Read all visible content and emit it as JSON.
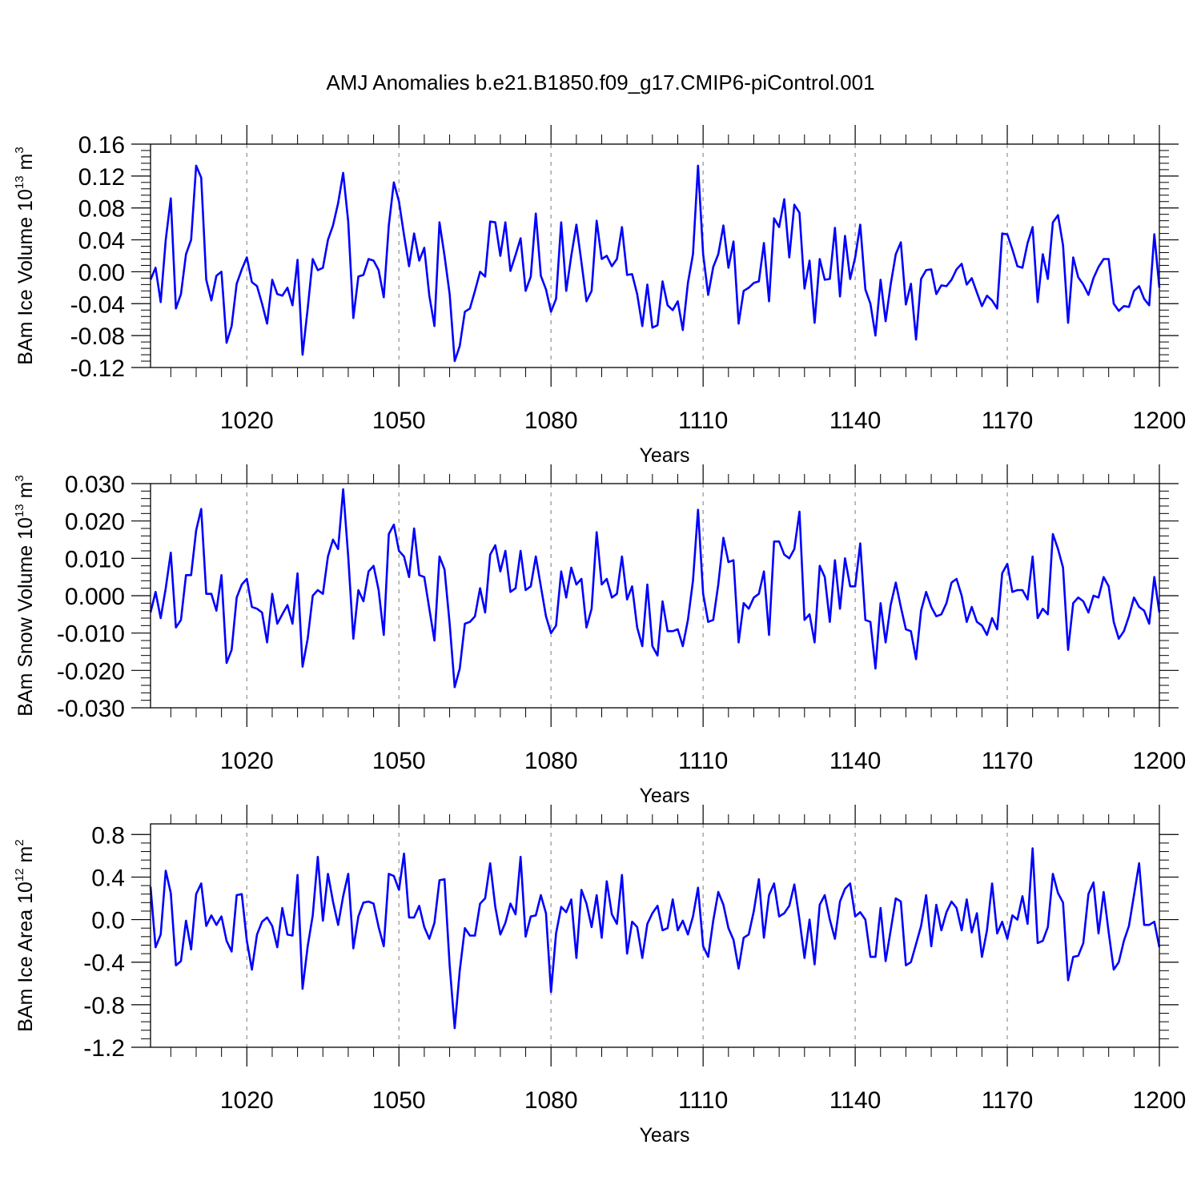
{
  "title": "AMJ Anomalies b.e21.B1850.f09_g17.CMIP6-piControl.001",
  "chart_data": [
    {
      "type": "line",
      "title": "AMJ Anomalies b.e21.B1850.f09_g17.CMIP6-piControl.001",
      "xlabel": "Years",
      "ylabel_prefix": "BAm Ice Volume 10",
      "ylabel_exp": "13",
      "ylabel_suffix": " m",
      "ylabel_unit_exp": "3",
      "xlim": [
        1001,
        1200
      ],
      "ylim": [
        -0.12,
        0.16
      ],
      "xticks": [
        1020,
        1050,
        1080,
        1110,
        1140,
        1170,
        1200
      ],
      "xtick_labels": [
        "1020",
        "1050",
        "1080",
        "1110",
        "1140",
        "1170",
        "1200"
      ],
      "yticks": [
        -0.12,
        -0.08,
        -0.04,
        0.0,
        0.04,
        0.08,
        0.12,
        0.16
      ],
      "ytick_labels": [
        "-0.12",
        "-0.08",
        "-0.04",
        "0.00",
        "0.04",
        "0.08",
        "0.12",
        "0.16"
      ],
      "grid": "vertical-dashed",
      "color": "#0000ff",
      "x_start": 1001,
      "values": [
        -0.01,
        0.005,
        -0.038,
        0.04,
        0.092,
        -0.046,
        -0.028,
        0.022,
        0.04,
        0.133,
        0.118,
        -0.01,
        -0.036,
        -0.005,
        0.0,
        -0.089,
        -0.068,
        -0.015,
        0.003,
        0.018,
        -0.013,
        -0.018,
        -0.04,
        -0.065,
        -0.01,
        -0.028,
        -0.03,
        -0.02,
        -0.042,
        0.015,
        -0.104,
        -0.046,
        0.016,
        0.002,
        0.005,
        0.04,
        0.058,
        0.086,
        0.124,
        0.063,
        -0.058,
        -0.006,
        -0.004,
        0.016,
        0.014,
        0.002,
        -0.032,
        0.058,
        0.112,
        0.088,
        0.046,
        0.007,
        0.048,
        0.014,
        0.03,
        -0.03,
        -0.068,
        0.062,
        0.02,
        -0.028,
        -0.112,
        -0.093,
        -0.05,
        -0.046,
        -0.024,
        0.0,
        -0.006,
        0.063,
        0.062,
        0.02,
        0.062,
        0.001,
        0.021,
        0.042,
        -0.024,
        -0.006,
        0.073,
        -0.005,
        -0.022,
        -0.05,
        -0.034,
        0.062,
        -0.024,
        0.02,
        0.059,
        0.012,
        -0.037,
        -0.024,
        0.064,
        0.016,
        0.02,
        0.007,
        0.016,
        0.056,
        -0.004,
        -0.003,
        -0.028,
        -0.068,
        -0.016,
        -0.07,
        -0.067,
        -0.012,
        -0.042,
        -0.048,
        -0.037,
        -0.073,
        -0.014,
        0.022,
        0.133,
        0.022,
        -0.029,
        0.006,
        0.022,
        0.058,
        0.005,
        0.038,
        -0.065,
        -0.024,
        -0.02,
        -0.014,
        -0.012,
        0.036,
        -0.037,
        0.067,
        0.056,
        0.091,
        0.018,
        0.084,
        0.074,
        -0.021,
        0.014,
        -0.064,
        0.016,
        -0.01,
        -0.009,
        0.055,
        -0.031,
        0.045,
        -0.009,
        0.018,
        0.059,
        -0.022,
        -0.04,
        -0.08,
        -0.01,
        -0.062,
        -0.016,
        0.022,
        0.037,
        -0.041,
        -0.015,
        -0.085,
        -0.009,
        0.002,
        0.003,
        -0.028,
        -0.017,
        -0.018,
        -0.01,
        0.003,
        0.01,
        -0.016,
        -0.008,
        -0.026,
        -0.043,
        -0.03,
        -0.036,
        -0.046,
        0.048,
        0.047,
        0.028,
        0.007,
        0.005,
        0.036,
        0.056,
        -0.038,
        0.022,
        -0.009,
        0.062,
        0.071,
        0.033,
        -0.064,
        0.018,
        -0.007,
        -0.016,
        -0.029,
        -0.008,
        0.006,
        0.016,
        0.016,
        -0.04,
        -0.049,
        -0.043,
        -0.044,
        -0.024,
        -0.018,
        -0.034,
        -0.042,
        0.047,
        -0.02
      ]
    },
    {
      "type": "line",
      "xlabel": "Years",
      "ylabel_prefix": "BAm Snow Volume 10",
      "ylabel_exp": "13",
      "ylabel_suffix": " m",
      "ylabel_unit_exp": "3",
      "xlim": [
        1001,
        1200
      ],
      "ylim": [
        -0.03,
        0.03
      ],
      "xticks": [
        1020,
        1050,
        1080,
        1110,
        1140,
        1170,
        1200
      ],
      "xtick_labels": [
        "1020",
        "1050",
        "1080",
        "1110",
        "1140",
        "1170",
        "1200"
      ],
      "yticks": [
        -0.03,
        -0.02,
        -0.01,
        0.0,
        0.01,
        0.02,
        0.03
      ],
      "ytick_labels": [
        "-0.030",
        "-0.020",
        "-0.010",
        "0.000",
        "0.010",
        "0.020",
        "0.030"
      ],
      "grid": "vertical-dashed",
      "color": "#0000ff",
      "x_start": 1001,
      "values": [
        -0.0045,
        0.001,
        -0.006,
        0.002,
        0.0115,
        -0.0085,
        -0.0065,
        0.0055,
        0.0055,
        0.0175,
        0.0232,
        0.0005,
        0.0005,
        -0.004,
        0.0055,
        -0.018,
        -0.0145,
        -0.0005,
        0.003,
        0.0045,
        -0.003,
        -0.0035,
        -0.0045,
        -0.0125,
        0.0005,
        -0.0075,
        -0.005,
        -0.0025,
        -0.0075,
        0.006,
        -0.019,
        -0.0115,
        0.0,
        0.0015,
        0.0005,
        0.0105,
        0.015,
        0.0125,
        0.0285,
        0.0105,
        -0.0115,
        0.0015,
        -0.0015,
        0.0065,
        0.008,
        0.0015,
        -0.0105,
        0.0165,
        0.019,
        0.012,
        0.0105,
        0.005,
        0.018,
        0.0055,
        0.005,
        -0.0035,
        -0.012,
        0.0105,
        0.007,
        -0.0075,
        -0.0245,
        -0.0195,
        -0.0075,
        -0.007,
        -0.0055,
        0.002,
        -0.0045,
        0.011,
        0.0135,
        0.0065,
        0.012,
        0.001,
        0.002,
        0.012,
        0.0015,
        0.0025,
        0.0105,
        0.0025,
        -0.0055,
        -0.01,
        -0.008,
        0.0065,
        -0.0005,
        0.0075,
        0.003,
        0.0045,
        -0.0085,
        -0.0035,
        0.017,
        0.003,
        0.0045,
        -0.0005,
        0.0005,
        0.0105,
        -0.001,
        0.0025,
        -0.0085,
        -0.0135,
        0.003,
        -0.0135,
        -0.016,
        -0.0015,
        -0.0095,
        -0.0095,
        -0.009,
        -0.0135,
        -0.0065,
        0.004,
        0.023,
        0.0005,
        -0.007,
        -0.0065,
        0.003,
        0.0155,
        0.009,
        0.0095,
        -0.0125,
        -0.002,
        -0.0035,
        -0.0005,
        0.0005,
        0.0065,
        -0.0105,
        0.0145,
        0.0145,
        0.011,
        0.01,
        0.0125,
        0.0225,
        -0.0065,
        -0.005,
        -0.0125,
        0.008,
        0.005,
        -0.007,
        0.0095,
        -0.0035,
        0.01,
        0.0025,
        0.0025,
        0.014,
        -0.0065,
        -0.007,
        -0.0195,
        -0.002,
        -0.0125,
        -0.0025,
        0.0035,
        -0.003,
        -0.009,
        -0.0095,
        -0.017,
        -0.004,
        0.001,
        -0.003,
        -0.0055,
        -0.005,
        -0.002,
        0.0035,
        0.0045,
        0.0,
        -0.007,
        -0.003,
        -0.007,
        -0.008,
        -0.0105,
        -0.006,
        -0.009,
        0.006,
        0.0085,
        0.001,
        0.0015,
        0.0015,
        -0.001,
        0.0105,
        -0.006,
        -0.0035,
        -0.005,
        0.0165,
        0.0125,
        0.0075,
        -0.0145,
        -0.002,
        -0.0005,
        -0.0015,
        -0.0045,
        0.0,
        -0.0005,
        0.005,
        0.0025,
        -0.007,
        -0.0115,
        -0.0095,
        -0.0055,
        -0.0005,
        -0.003,
        -0.004,
        -0.0075,
        0.005,
        -0.0045
      ]
    },
    {
      "type": "line",
      "xlabel": "Years",
      "ylabel_prefix": "BAm Ice Area 10",
      "ylabel_exp": "12",
      "ylabel_suffix": " m",
      "ylabel_unit_exp": "2",
      "xlim": [
        1001,
        1200
      ],
      "ylim": [
        -1.2,
        0.9
      ],
      "xticks": [
        1020,
        1050,
        1080,
        1110,
        1140,
        1170,
        1200
      ],
      "xtick_labels": [
        "1020",
        "1050",
        "1080",
        "1110",
        "1140",
        "1170",
        "1200"
      ],
      "yticks": [
        -1.2,
        -0.8,
        -0.4,
        0.0,
        0.4,
        0.8
      ],
      "ytick_labels": [
        "-1.2",
        "-0.8",
        "-0.4",
        "0.0",
        "0.4",
        "0.8"
      ],
      "grid": "vertical-dashed",
      "color": "#0000ff",
      "x_start": 1001,
      "values": [
        0.31,
        -0.26,
        -0.14,
        0.46,
        0.25,
        -0.43,
        -0.39,
        -0.01,
        -0.28,
        0.24,
        0.34,
        -0.06,
        0.04,
        -0.05,
        0.03,
        -0.2,
        -0.3,
        0.23,
        0.24,
        -0.2,
        -0.47,
        -0.14,
        -0.02,
        0.02,
        -0.06,
        -0.26,
        0.11,
        -0.14,
        -0.15,
        0.42,
        -0.65,
        -0.25,
        0.04,
        0.59,
        -0.01,
        0.43,
        0.17,
        -0.05,
        0.22,
        0.43,
        -0.27,
        0.03,
        0.16,
        0.17,
        0.15,
        -0.07,
        -0.25,
        0.43,
        0.41,
        0.28,
        0.62,
        0.02,
        0.02,
        0.13,
        -0.07,
        -0.18,
        -0.03,
        0.37,
        0.38,
        -0.43,
        -1.02,
        -0.48,
        -0.08,
        -0.15,
        -0.15,
        0.15,
        0.2,
        0.53,
        0.12,
        -0.14,
        -0.03,
        0.15,
        0.05,
        0.59,
        -0.16,
        0.03,
        0.04,
        0.23,
        0.06,
        -0.68,
        -0.13,
        0.12,
        0.07,
        0.19,
        -0.36,
        0.28,
        0.15,
        -0.07,
        0.23,
        -0.17,
        0.36,
        0.05,
        -0.04,
        0.42,
        -0.32,
        -0.02,
        -0.07,
        -0.36,
        -0.04,
        0.06,
        0.13,
        -0.1,
        -0.08,
        0.19,
        -0.1,
        -0.01,
        -0.14,
        0.03,
        0.3,
        -0.25,
        -0.35,
        -0.01,
        0.26,
        0.14,
        -0.08,
        -0.19,
        -0.46,
        -0.17,
        -0.14,
        0.08,
        0.38,
        -0.17,
        0.23,
        0.34,
        0.03,
        0.06,
        0.13,
        0.33,
        0.0,
        -0.36,
        0.0,
        -0.42,
        0.14,
        0.23,
        0.0,
        -0.18,
        0.17,
        0.29,
        0.34,
        0.03,
        0.07,
        0.0,
        -0.35,
        -0.35,
        0.11,
        -0.39,
        -0.1,
        0.2,
        0.17,
        -0.43,
        -0.4,
        -0.23,
        -0.06,
        0.23,
        -0.25,
        0.14,
        -0.1,
        0.07,
        0.17,
        0.11,
        -0.1,
        0.19,
        -0.12,
        0.06,
        -0.35,
        -0.1,
        0.34,
        -0.13,
        -0.02,
        -0.18,
        0.04,
        0.0,
        0.22,
        -0.04,
        0.67,
        -0.22,
        -0.2,
        -0.07,
        0.43,
        0.25,
        0.16,
        -0.57,
        -0.35,
        -0.34,
        -0.22,
        0.24,
        0.35,
        -0.13,
        0.26,
        -0.12,
        -0.47,
        -0.4,
        -0.2,
        -0.06,
        0.23,
        0.53,
        -0.05,
        -0.05,
        -0.02,
        -0.26
      ]
    }
  ]
}
